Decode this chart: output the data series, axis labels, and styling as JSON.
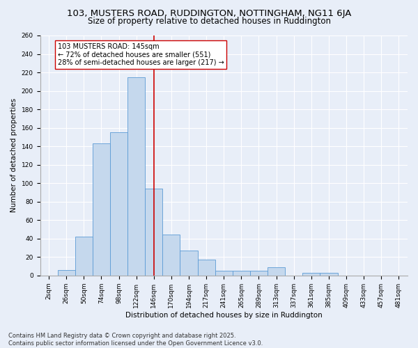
{
  "title_line1": "103, MUSTERS ROAD, RUDDINGTON, NOTTINGHAM, NG11 6JA",
  "title_line2": "Size of property relative to detached houses in Ruddington",
  "xlabel": "Distribution of detached houses by size in Ruddington",
  "ylabel": "Number of detached properties",
  "categories": [
    "2sqm",
    "26sqm",
    "50sqm",
    "74sqm",
    "98sqm",
    "122sqm",
    "146sqm",
    "170sqm",
    "194sqm",
    "217sqm",
    "241sqm",
    "265sqm",
    "289sqm",
    "313sqm",
    "337sqm",
    "361sqm",
    "385sqm",
    "409sqm",
    "433sqm",
    "457sqm",
    "481sqm"
  ],
  "bar_heights": [
    0,
    6,
    42,
    143,
    155,
    215,
    94,
    44,
    27,
    17,
    5,
    5,
    5,
    9,
    0,
    3,
    3,
    0,
    0,
    0,
    0
  ],
  "bar_color": "#c5d8ed",
  "bar_edge_color": "#5b9bd5",
  "vline_index": 6,
  "vline_color": "#cc0000",
  "annotation_text": "103 MUSTERS ROAD: 145sqm\n← 72% of detached houses are smaller (551)\n28% of semi-detached houses are larger (217) →",
  "annotation_box_color": "#ffffff",
  "annotation_box_edge": "#cc0000",
  "ylim": [
    0,
    260
  ],
  "yticks": [
    0,
    20,
    40,
    60,
    80,
    100,
    120,
    140,
    160,
    180,
    200,
    220,
    240,
    260
  ],
  "background_color": "#e8eef8",
  "grid_color": "#ffffff",
  "footer": "Contains HM Land Registry data © Crown copyright and database right 2025.\nContains public sector information licensed under the Open Government Licence v3.0.",
  "title_fontsize": 9.5,
  "subtitle_fontsize": 8.5,
  "axis_label_fontsize": 7.5,
  "tick_fontsize": 6.5,
  "annotation_fontsize": 7,
  "footer_fontsize": 6
}
